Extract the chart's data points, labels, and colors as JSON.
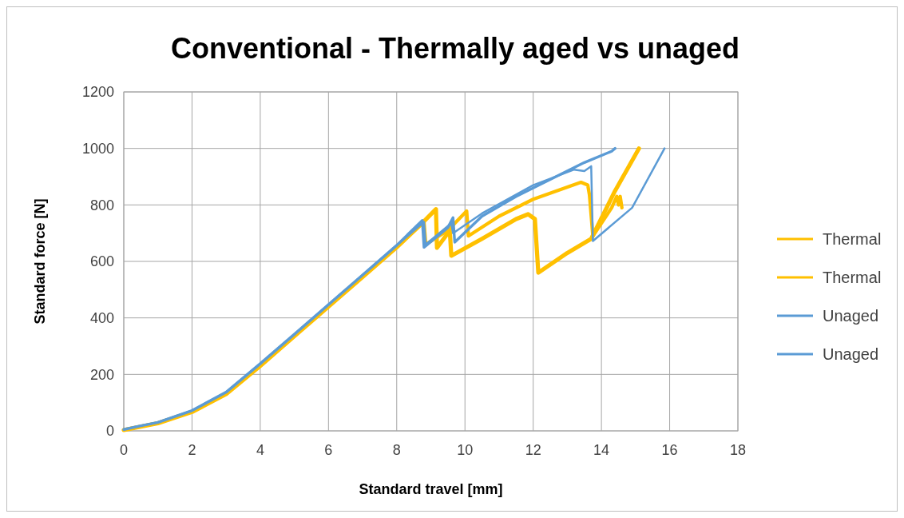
{
  "chart_data": {
    "type": "line",
    "title": "Conventional - Thermally aged vs unaged",
    "xlabel": "Standard travel [mm]",
    "ylabel": "Standard force [N]",
    "xlim": [
      0,
      18
    ],
    "xticks": [
      0,
      2,
      4,
      6,
      8,
      10,
      12,
      14,
      16,
      18
    ],
    "ylim": [
      0,
      1200
    ],
    "yticks": [
      0,
      200,
      400,
      600,
      800,
      1000,
      1200
    ],
    "grid": true,
    "legend": "right",
    "marker": "none",
    "line_style": "solid",
    "series": [
      {
        "name": "Thermal",
        "color": "#ffc000",
        "x": [
          0,
          0.5,
          1,
          2,
          3,
          4,
          5,
          6,
          7,
          8,
          8.7,
          9.15,
          9.18,
          9.5,
          9.55,
          9.6,
          10.5,
          11.5,
          11.85,
          12.05,
          12.15,
          13,
          13.7,
          14.4,
          15.1
        ],
        "values": [
          3,
          15,
          27,
          67,
          130,
          230,
          335,
          440,
          545,
          650,
          730,
          785,
          648,
          700,
          720,
          620,
          680,
          750,
          767,
          750,
          560,
          630,
          680,
          850,
          1000
        ]
      },
      {
        "name": "Thermal",
        "color": "#ffc000",
        "x": [
          0,
          0.5,
          1,
          2,
          3,
          4,
          5,
          6,
          7,
          8,
          8.8,
          8.85,
          9.5,
          10.05,
          10.1,
          11,
          12,
          13.4,
          13.6,
          13.65,
          13.75,
          14.3,
          14.45,
          14.5,
          14.55,
          14.6
        ],
        "values": [
          4,
          16,
          28,
          68,
          132,
          232,
          337,
          442,
          547,
          652,
          740,
          660,
          710,
          778,
          690,
          760,
          820,
          880,
          870,
          835,
          690,
          790,
          830,
          800,
          830,
          790
        ]
      },
      {
        "name": "Unaged",
        "color": "#5b9bd5",
        "x": [
          0,
          0.5,
          1,
          2,
          3,
          4,
          5,
          6,
          7,
          8,
          8.75,
          8.8,
          9.5,
          9.65,
          9.7,
          10.5,
          11.5,
          12.5,
          13.5,
          14.3,
          14.4
        ],
        "values": [
          5,
          18,
          30,
          72,
          137,
          238,
          342,
          447,
          552,
          657,
          745,
          650,
          720,
          755,
          668,
          760,
          830,
          890,
          950,
          990,
          1000
        ]
      },
      {
        "name": "Unaged",
        "color": "#5b9bd5",
        "x": [
          0,
          0.5,
          1,
          2,
          3,
          4,
          5,
          6,
          7,
          8,
          8.8,
          8.85,
          9.6,
          9.65,
          10.5,
          12,
          13.2,
          13.5,
          13.7,
          13.75,
          14.9,
          15.85
        ],
        "values": [
          5,
          18,
          30,
          72,
          137,
          238,
          342,
          447,
          552,
          657,
          740,
          660,
          735,
          700,
          770,
          870,
          925,
          920,
          937,
          672,
          790,
          1000
        ]
      }
    ]
  }
}
